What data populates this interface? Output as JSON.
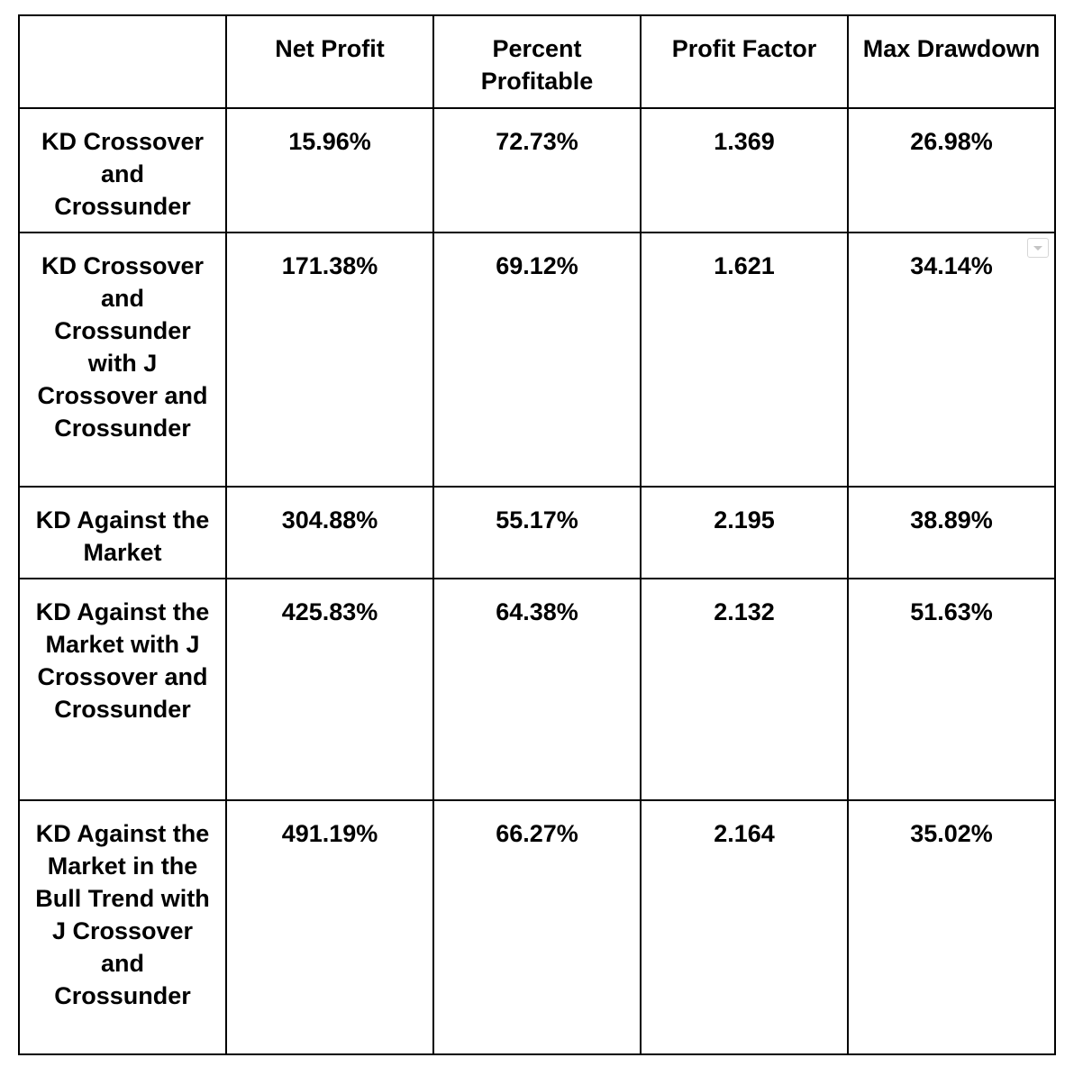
{
  "table": {
    "headers": [
      "",
      "Net Profit",
      "Percent Profitable",
      "Profit Factor",
      "Max Drawdown"
    ],
    "rows": [
      {
        "strategy": "KD Crossover and Crossunder",
        "net_profit": "15.96%",
        "percent_profitable": "72.73%",
        "profit_factor": "1.369",
        "max_drawdown": "26.98%"
      },
      {
        "strategy": "KD Crossover and Crossunder with J Crossover and Crossunder",
        "net_profit": "171.38%",
        "percent_profitable": "69.12%",
        "profit_factor": "1.621",
        "max_drawdown": "34.14%"
      },
      {
        "strategy": "KD Against the Market",
        "net_profit": "304.88%",
        "percent_profitable": "55.17%",
        "profit_factor": "2.195",
        "max_drawdown": "38.89%"
      },
      {
        "strategy": "KD Against the Market with J Crossover and Crossunder",
        "net_profit": "425.83%",
        "percent_profitable": "64.38%",
        "profit_factor": "2.132",
        "max_drawdown": "51.63%"
      },
      {
        "strategy": "KD Against the Market in the Bull Trend with J Crossover and Crossunder",
        "net_profit": "491.19%",
        "percent_profitable": "66.27%",
        "profit_factor": "2.164",
        "max_drawdown": "35.02%"
      }
    ]
  },
  "icons": {
    "dropdown_hint": "chevron-down-icon"
  }
}
